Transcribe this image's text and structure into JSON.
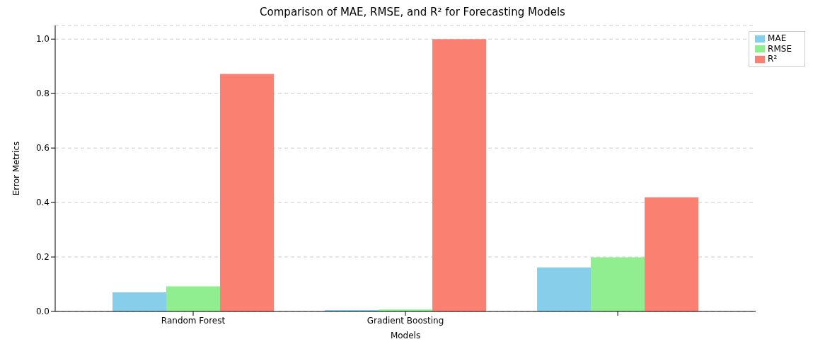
{
  "chart_data": {
    "type": "bar",
    "title": "Comparison of MAE, RMSE, and R² for Forecasting Models",
    "xlabel": "Models",
    "ylabel": "Error Metrics",
    "categories": [
      "Random Forest",
      "Gradient Boosting",
      null
    ],
    "series": [
      {
        "name": "MAE",
        "color": "#87ceeb",
        "values": [
          0.07,
          0.005,
          0.162
        ]
      },
      {
        "name": "RMSE",
        "color": "#90ee90",
        "values": [
          0.092,
          0.007,
          0.199
        ]
      },
      {
        "name": "R²",
        "color": "#fa8072",
        "values": [
          0.872,
          1.0,
          0.419
        ]
      }
    ],
    "ylim": [
      0,
      1.05
    ],
    "yticks": [
      {
        "value": 0,
        "label": "0.0"
      },
      0.2,
      0.4,
      0.6,
      0.8,
      {
        "value": 1,
        "label": "1.0"
      }
    ],
    "grid": "y",
    "legend": "top right"
  }
}
